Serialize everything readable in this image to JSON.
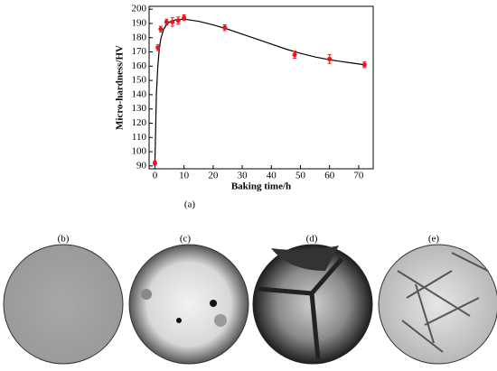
{
  "chart_data": {
    "type": "scatter",
    "xlabel": "Baking time/h",
    "ylabel": "Micro-hardness/HV",
    "caption": "(a)",
    "xlim": [
      -2,
      75
    ],
    "ylim": [
      88,
      202
    ],
    "xticks": [
      0,
      10,
      20,
      30,
      40,
      50,
      60,
      70
    ],
    "yticks": [
      90,
      100,
      110,
      120,
      130,
      140,
      150,
      160,
      170,
      180,
      190,
      200
    ],
    "series": [
      {
        "color": "#e8141c",
        "x": [
          0,
          1,
          2,
          4,
          6,
          8,
          10,
          24,
          48,
          60,
          72
        ],
        "values": [
          92,
          173,
          186,
          191,
          191,
          192,
          194,
          187,
          168,
          165,
          161
        ],
        "errors": [
          1.5,
          2,
          2,
          2,
          3,
          2.5,
          2,
          2,
          2.5,
          3,
          2
        ]
      }
    ],
    "fit": {
      "color": "#000000",
      "x": [
        0,
        0.5,
        1,
        1.5,
        2,
        3,
        4,
        5,
        7,
        10,
        15,
        20,
        25,
        30,
        35,
        40,
        45,
        50,
        55,
        60,
        65,
        72
      ],
      "values": [
        92,
        140,
        160,
        172,
        179,
        186,
        189,
        191,
        192.5,
        193,
        191.5,
        189,
        186,
        182.5,
        179,
        175.5,
        172,
        169,
        166.5,
        164.5,
        163,
        161
      ]
    }
  },
  "panels": [
    {
      "label": "(b)"
    },
    {
      "label": "(c)"
    },
    {
      "label": "(d)"
    },
    {
      "label": "(e)"
    }
  ]
}
